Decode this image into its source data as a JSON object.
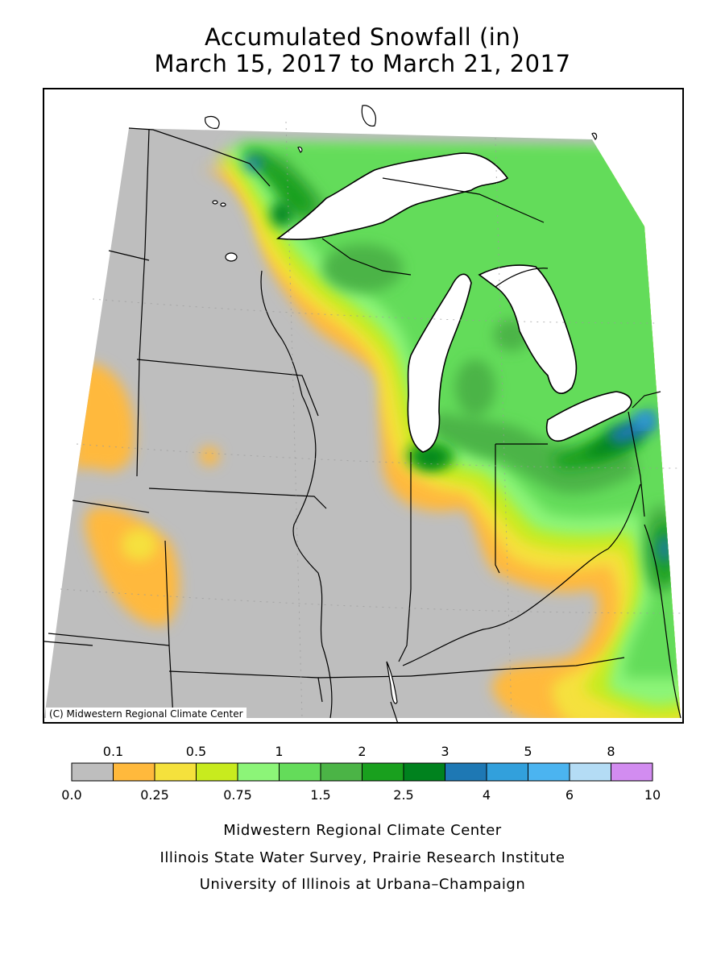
{
  "title": {
    "line1": "Accumulated Snowfall (in)",
    "line2": "March 15, 2017 to March 21, 2017"
  },
  "map": {
    "copyright": "(C) Midwestern Regional Climate Center"
  },
  "legend": {
    "bins": [
      {
        "min": 0.0,
        "color": "#bebebe"
      },
      {
        "min": 0.1,
        "color": "#ffb93c"
      },
      {
        "min": 0.25,
        "color": "#f5e13c"
      },
      {
        "min": 0.5,
        "color": "#c8eb1e"
      },
      {
        "min": 0.75,
        "color": "#8cf578"
      },
      {
        "min": 1,
        "color": "#64dc5a"
      },
      {
        "min": 1.5,
        "color": "#4bb446"
      },
      {
        "min": 2,
        "color": "#19a01e"
      },
      {
        "min": 2.5,
        "color": "#00821e"
      },
      {
        "min": 3,
        "color": "#1e78b4"
      },
      {
        "min": 4,
        "color": "#32a0dc"
      },
      {
        "min": 5,
        "color": "#4bb4f0"
      },
      {
        "min": 6,
        "color": "#b4dcf5"
      },
      {
        "min": 8,
        "color": "#d28cf0"
      }
    ],
    "top_labels": [
      "0.1",
      "0.5",
      "1",
      "2",
      "3",
      "5",
      "8"
    ],
    "bottom_labels": [
      "0.0",
      "0.25",
      "0.75",
      "1.5",
      "2.5",
      "4",
      "6",
      "10"
    ]
  },
  "credits": {
    "line1": "Midwestern Regional Climate Center",
    "line2": "Illinois State Water Survey, Prairie Research Institute",
    "line3": "University of Illinois at Urbana–Champaign"
  }
}
